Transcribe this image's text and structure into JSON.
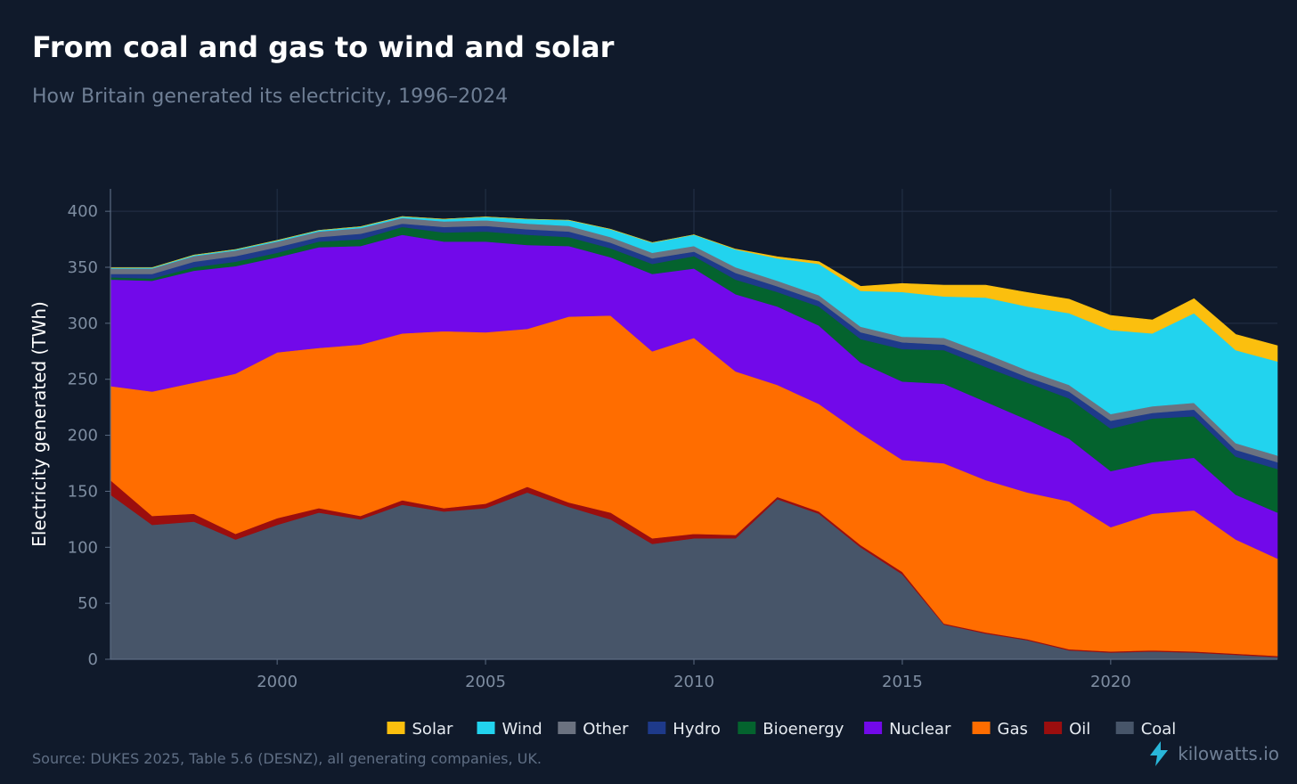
{
  "title": "From coal and gas to wind and solar",
  "subtitle": "How Britain generated its electricity, 1996–2024",
  "source": "Source: DUKES 2025, Table 5.6 (DESNZ), all generating companies, UK.",
  "brand": "kilowatts.io",
  "colors": {
    "background": "#101a2b",
    "brand_icon": "#29b6d9"
  },
  "chart_data": {
    "type": "area",
    "stacked": true,
    "title": "From coal and gas to wind and solar",
    "subtitle": "How Britain generated its electricity, 1996–2024",
    "xlabel": "",
    "ylabel": "Electricity generated (TWh)",
    "xlim": [
      1996,
      2024
    ],
    "ylim": [
      0,
      420
    ],
    "xticks": [
      2000,
      2005,
      2010,
      2015,
      2020
    ],
    "yticks": [
      0,
      50,
      100,
      150,
      200,
      250,
      300,
      350,
      400
    ],
    "grid": true,
    "legend_position": "bottom",
    "x": [
      1996,
      1997,
      1998,
      1999,
      2000,
      2001,
      2002,
      2003,
      2004,
      2005,
      2006,
      2007,
      2008,
      2009,
      2010,
      2011,
      2012,
      2013,
      2014,
      2015,
      2016,
      2017,
      2018,
      2019,
      2020,
      2021,
      2022,
      2023,
      2024
    ],
    "series": [
      {
        "name": "Coal",
        "color": "#475569",
        "values": [
          147,
          120,
          123,
          107,
          120,
          131,
          125,
          138,
          132,
          135,
          149,
          136,
          125,
          103,
          108,
          108,
          143,
          130,
          100,
          76,
          31,
          23,
          17,
          8,
          6,
          7,
          6,
          4,
          2
        ]
      },
      {
        "name": "Oil",
        "color": "#9b0e0e",
        "values": [
          13,
          8,
          7,
          5,
          6,
          4,
          3,
          4,
          3,
          4,
          5,
          4,
          6,
          5,
          4,
          3,
          2,
          2,
          2,
          2,
          1,
          1,
          1,
          1,
          1,
          1,
          1,
          1,
          1
        ]
      },
      {
        "name": "Gas",
        "color": "#ff6d00",
        "values": [
          84,
          111,
          117,
          143,
          148,
          143,
          153,
          149,
          158,
          153,
          141,
          166,
          176,
          167,
          175,
          146,
          100,
          96,
          100,
          100,
          143,
          136,
          131,
          132,
          111,
          122,
          126,
          102,
          87
        ]
      },
      {
        "name": "Nuclear",
        "color": "#7209ea",
        "values": [
          95,
          99,
          100,
          96,
          85,
          90,
          88,
          88,
          80,
          81,
          75,
          63,
          52,
          69,
          62,
          69,
          70,
          70,
          63,
          70,
          71,
          70,
          65,
          56,
          50,
          46,
          47,
          40,
          41
        ]
      },
      {
        "name": "Bioenergy",
        "color": "#04632e",
        "values": [
          2,
          2,
          3,
          4,
          4,
          5,
          6,
          7,
          8,
          9,
          9,
          8,
          8,
          9,
          11,
          13,
          13,
          17,
          21,
          29,
          30,
          31,
          33,
          36,
          38,
          39,
          37,
          34,
          39
        ]
      },
      {
        "name": "Hydro",
        "color": "#1e3a8a",
        "values": [
          3,
          4,
          5,
          5,
          5,
          4,
          5,
          3,
          5,
          5,
          5,
          5,
          5,
          5,
          4,
          6,
          5,
          5,
          6,
          6,
          5,
          6,
          5,
          6,
          7,
          5,
          6,
          6,
          6
        ]
      },
      {
        "name": "Other",
        "color": "#6b7280",
        "values": [
          5,
          5,
          5,
          5,
          5,
          5,
          5,
          5,
          5,
          5,
          5,
          5,
          5,
          5,
          5,
          5,
          5,
          5,
          5,
          5,
          6,
          6,
          6,
          6,
          6,
          6,
          6,
          6,
          6
        ]
      },
      {
        "name": "Wind",
        "color": "#22d3ee",
        "values": [
          0.5,
          0.7,
          0.9,
          0.9,
          1.0,
          1.0,
          1.3,
          1.3,
          2.0,
          3.0,
          4.0,
          5.0,
          7.0,
          9.0,
          10.0,
          16.0,
          20.0,
          28.0,
          32.0,
          40.0,
          37.0,
          50.0,
          57.0,
          64.0,
          75.0,
          65.0,
          80.0,
          83.0,
          84.0
        ]
      },
      {
        "name": "Solar",
        "color": "#fbbf0e",
        "values": [
          0,
          0,
          0,
          0,
          0,
          0,
          0,
          0,
          0,
          0,
          0,
          0,
          0,
          0,
          0,
          0.2,
          1.4,
          2.0,
          4.0,
          7.5,
          10.0,
          11.0,
          12.5,
          12.5,
          13.0,
          12.0,
          13.0,
          14.0,
          14.0
        ]
      }
    ]
  }
}
